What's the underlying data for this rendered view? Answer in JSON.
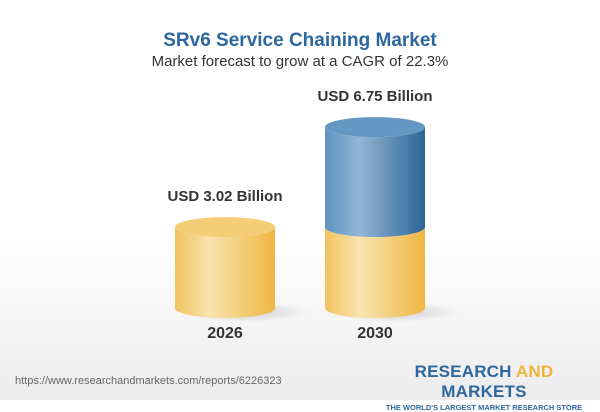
{
  "title": "SRv6 Service Chaining Market",
  "subtitle": "Market forecast to grow at a CAGR of 22.3%",
  "chart_data": {
    "type": "bar",
    "categories": [
      "2026",
      "2030"
    ],
    "values": [
      3.02,
      6.75
    ],
    "data_labels": [
      "USD 3.02 Billion",
      "USD 6.75 Billion"
    ],
    "unit": "USD Billion",
    "colors": {
      "base": "#f2c35c",
      "growth": "#4f86b6"
    }
  },
  "footer": {
    "url": "https://www.researchandmarkets.com/reports/6226323",
    "logo_part1": "RESEARCH ",
    "logo_part2": "AND",
    "logo_part3": " MARKETS",
    "tagline": "THE WORLD'S LARGEST MARKET RESEARCH STORE"
  }
}
